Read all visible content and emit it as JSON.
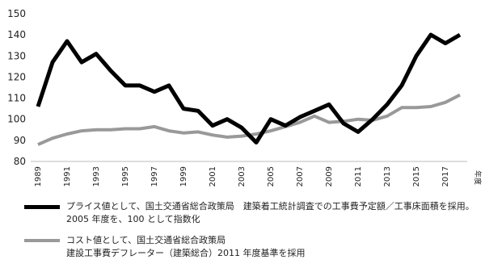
{
  "chart_data": {
    "type": "line",
    "categories": [
      "1989",
      null,
      "1991",
      null,
      "1993",
      null,
      "1995",
      null,
      "1997",
      null,
      "1999",
      null,
      "2001",
      null,
      "2003",
      null,
      "2005",
      null,
      "2007",
      null,
      "2009",
      null,
      "2011",
      null,
      "2013",
      null,
      "2015",
      null,
      "2017",
      null
    ],
    "x_label": "年度",
    "ylim": [
      80,
      150
    ],
    "yticks": [
      80,
      90,
      100,
      110,
      120,
      130,
      140,
      150
    ],
    "grid": false,
    "series": [
      {
        "name": "プライス値として、国土交通省総合政策局　建築着工統計調査での工事費予定額／工事床面積を採用。\n2005 年度を、100 として指数化",
        "color": "#000000",
        "width": 5,
        "values": [
          106,
          127,
          137,
          127,
          131,
          123,
          116,
          116,
          113,
          116,
          105,
          104,
          97,
          100,
          96,
          89,
          100,
          97,
          101,
          104,
          107,
          98,
          94,
          100,
          107,
          116,
          130,
          140,
          136,
          140
        ]
      },
      {
        "name": "コスト値として、国土交通省総合政策局\n建設工事費デフレーター（建築総合）2011 年度基準を採用",
        "color": "#999999",
        "width": 4,
        "values": [
          88,
          91,
          93,
          94.5,
          95,
          95,
          95.5,
          95.5,
          96.5,
          94.5,
          93.5,
          94,
          92.5,
          91.5,
          92,
          93,
          94.5,
          96.5,
          98.5,
          101.5,
          98.5,
          99,
          100,
          99.5,
          101.5,
          105.5,
          105.5,
          106,
          108,
          111.5
        ]
      }
    ]
  }
}
